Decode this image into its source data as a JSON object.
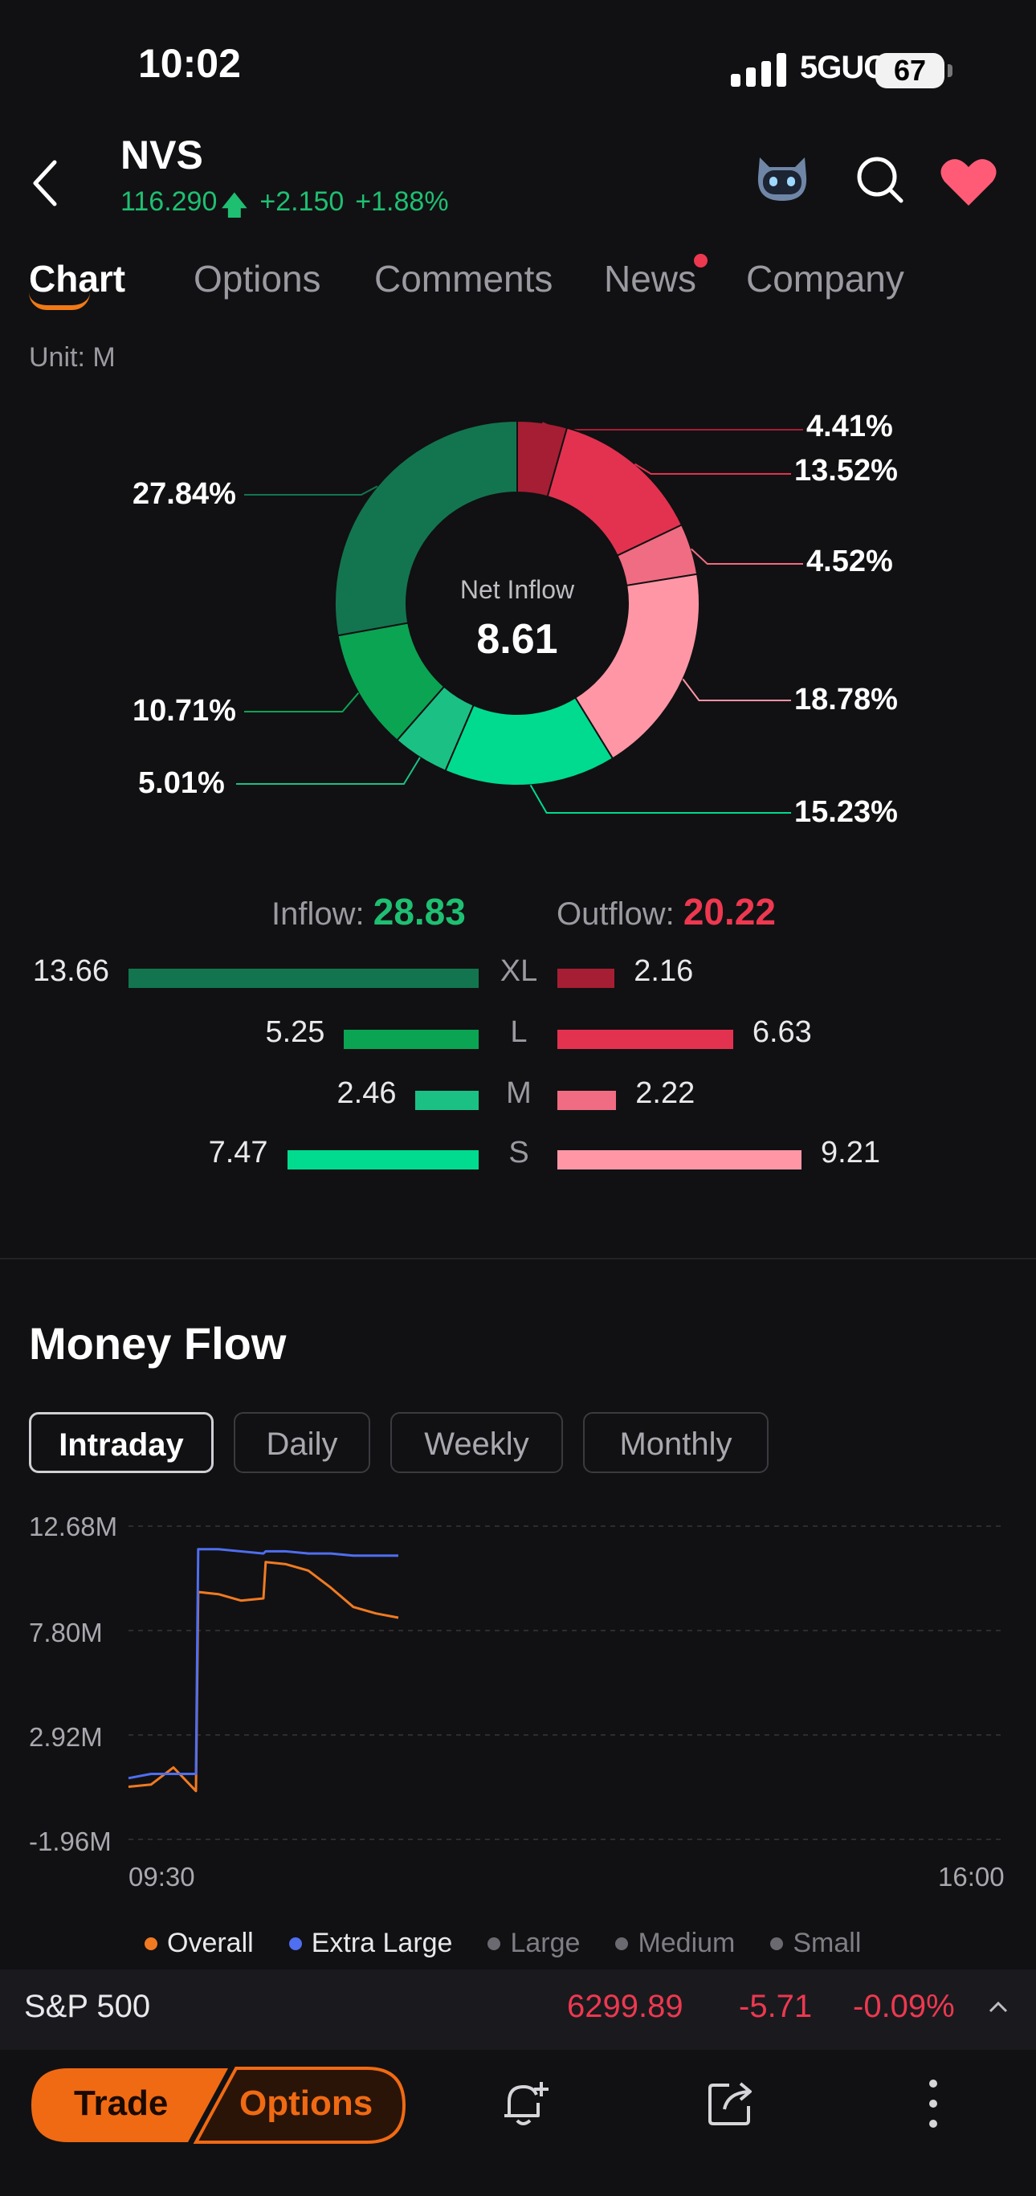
{
  "status": {
    "time": "10:02",
    "network": "5GUC",
    "battery": "67"
  },
  "header": {
    "symbol": "NVS",
    "price": "116.290",
    "change": "+2.150",
    "change_pct": "+1.88%"
  },
  "tabs": [
    "Chart",
    "Options",
    "Comments",
    "News",
    "Company"
  ],
  "unit_label": "Unit: M",
  "donut": {
    "center_label": "Net Inflow",
    "center_value": "8.61",
    "labels": [
      "4.41%",
      "13.52%",
      "4.52%",
      "18.78%",
      "15.23%",
      "5.01%",
      "10.71%",
      "27.84%"
    ]
  },
  "flow_summary": {
    "inflow_label": "Inflow:",
    "inflow_value": "28.83",
    "outflow_label": "Outflow:",
    "outflow_value": "20.22"
  },
  "order_rows": [
    {
      "category": "XL",
      "inflow": "13.66",
      "outflow": "2.16"
    },
    {
      "category": "L",
      "inflow": "5.25",
      "outflow": "6.63"
    },
    {
      "category": "M",
      "inflow": "2.46",
      "outflow": "2.22"
    },
    {
      "category": "S",
      "inflow": "7.47",
      "outflow": "9.21"
    }
  ],
  "money_flow": {
    "title": "Money Flow",
    "periods": [
      "Intraday",
      "Daily",
      "Weekly",
      "Monthly"
    ],
    "y_ticks": [
      "12.68M",
      "7.80M",
      "2.92M",
      "-1.96M"
    ],
    "x_ticks": [
      "09:30",
      "16:00"
    ],
    "legend": [
      "Overall",
      "Extra Large",
      "Large",
      "Medium",
      "Small"
    ]
  },
  "chart_data": [
    {
      "type": "pie",
      "categories": [
        "XL outflow",
        "L outflow",
        "M outflow",
        "S outflow",
        "S inflow",
        "M inflow",
        "L inflow",
        "XL inflow"
      ],
      "values": [
        4.41,
        13.52,
        4.52,
        18.78,
        15.23,
        5.01,
        10.71,
        27.84
      ],
      "colors": [
        "#a61e33",
        "#e3324f",
        "#f06c82",
        "#ff96a6",
        "#00db8f",
        "#1bc184",
        "#0aa453",
        "#13754f"
      ]
    },
    {
      "type": "bar",
      "categories": [
        "XL",
        "L",
        "M",
        "S"
      ],
      "series": [
        {
          "name": "Inflow",
          "values": [
            13.66,
            5.25,
            2.46,
            7.47
          ]
        },
        {
          "name": "Outflow",
          "values": [
            2.16,
            6.63,
            2.22,
            9.21
          ]
        }
      ]
    },
    {
      "type": "line",
      "ylim": [
        -1.96,
        12.68
      ],
      "x": [
        "09:30",
        "09:40",
        "09:50",
        "10:00",
        "10:01",
        "10:10",
        "10:20",
        "10:30",
        "10:31",
        "10:40",
        "10:50",
        "11:00",
        "11:10",
        "11:20",
        "11:30"
      ],
      "series": [
        {
          "name": "Extra Large",
          "color": "#4f6ef0",
          "values": [
            0.9,
            1.1,
            1.1,
            1.1,
            11.6,
            11.6,
            11.5,
            11.4,
            11.5,
            11.5,
            11.4,
            11.4,
            11.3,
            11.3,
            11.3
          ]
        },
        {
          "name": "Overall",
          "color": "#f07a22",
          "values": [
            0.5,
            0.6,
            1.4,
            0.3,
            9.6,
            9.5,
            9.2,
            9.3,
            11.0,
            10.9,
            10.6,
            9.8,
            8.9,
            8.6,
            8.4
          ]
        }
      ]
    }
  ],
  "index": {
    "name": "S&P 500",
    "value": "6299.89",
    "change": "-5.71",
    "change_pct": "-0.09%"
  },
  "bottom": {
    "trade_label": "Trade",
    "options_label": "Options"
  }
}
